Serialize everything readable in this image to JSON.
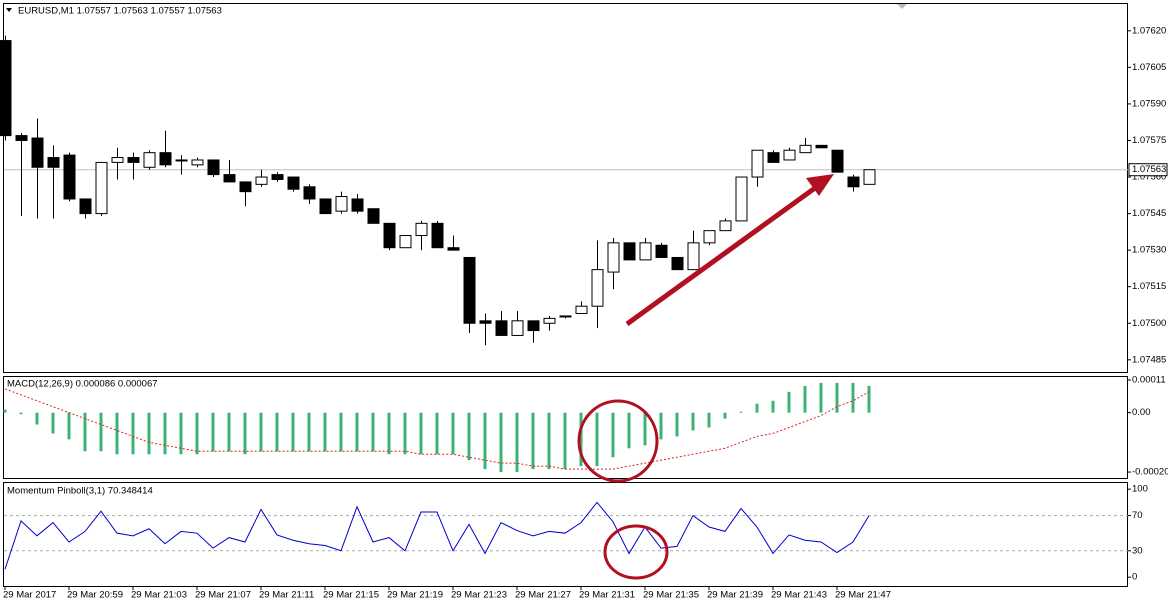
{
  "chart_data": [
    {
      "type": "candlestick",
      "title": "EURUSD,M1 1.07557 1.07563 1.07557 1.07563",
      "categories": [
        "29 Mar 2017",
        null,
        null,
        null,
        "29 Mar 20:59",
        null,
        null,
        null,
        "29 Mar 21:03",
        null,
        null,
        null,
        "29 Mar 21:07",
        null,
        null,
        null,
        "29 Mar 21:11",
        null,
        null,
        null,
        "29 Mar 21:15",
        null,
        null,
        null,
        "29 Mar 21:19",
        null,
        null,
        null,
        "29 Mar 21:23",
        null,
        null,
        null,
        "29 Mar 21:27",
        null,
        null,
        null,
        "29 Mar 21:31",
        null,
        null,
        null,
        "29 Mar 21:35",
        null,
        null,
        null,
        "29 Mar 21:39",
        null,
        null,
        null,
        "29 Mar 21:43",
        null,
        null,
        null,
        "29 Mar 21:47",
        null,
        null
      ],
      "open": [
        1.07616,
        1.07577,
        1.07576,
        1.07568,
        1.07569,
        1.07551,
        1.07545,
        1.07566,
        1.07568,
        1.07564,
        1.0757,
        1.07567,
        1.07565,
        1.07567,
        1.07561,
        1.07558,
        1.07557,
        1.07561,
        1.0756,
        1.07556,
        1.07551,
        1.07546,
        1.07551,
        1.07547,
        1.07541,
        1.07531,
        1.07536,
        1.07541,
        1.07531,
        1.07527,
        1.07501,
        1.07501,
        1.07495,
        1.07501,
        1.075,
        1.07503,
        1.07504,
        1.07507,
        1.07521,
        1.07533,
        1.07526,
        1.07532,
        1.07527,
        1.07522,
        1.07533,
        1.07538,
        1.07542,
        1.0756,
        1.0757,
        1.07567,
        1.0757,
        1.07573,
        1.07571,
        1.0756,
        1.07557
      ],
      "high": [
        1.07618,
        1.07578,
        1.07584,
        1.07573,
        1.0757,
        1.07551,
        1.07566,
        1.07572,
        1.0757,
        1.07571,
        1.07579,
        1.07569,
        1.07568,
        1.07567,
        1.07567,
        1.07558,
        1.07563,
        1.07562,
        1.0756,
        1.07557,
        1.07551,
        1.07554,
        1.07553,
        1.07547,
        1.07541,
        1.07536,
        1.07542,
        1.07542,
        1.07536,
        1.07527,
        1.07504,
        1.07505,
        1.07505,
        1.07501,
        1.07503,
        1.07503,
        1.07509,
        1.07534,
        1.07535,
        1.07533,
        1.07535,
        1.07533,
        1.07527,
        1.07538,
        1.07538,
        1.07543,
        1.0756,
        1.07571,
        1.07571,
        1.07572,
        1.07576,
        1.07573,
        1.07571,
        1.07561,
        1.07563
      ],
      "low": [
        1.07575,
        1.07544,
        1.07543,
        1.07543,
        1.0755,
        1.07543,
        1.07544,
        1.07559,
        1.07559,
        1.07563,
        1.07564,
        1.07561,
        1.07564,
        1.0756,
        1.07558,
        1.07548,
        1.07556,
        1.07558,
        1.07554,
        1.07549,
        1.07545,
        1.07545,
        1.07545,
        1.07541,
        1.0753,
        1.07531,
        1.0753,
        1.07531,
        1.0753,
        1.07496,
        1.07491,
        1.07495,
        1.07495,
        1.07492,
        1.07497,
        1.07502,
        1.07504,
        1.07498,
        1.07514,
        1.07526,
        1.07526,
        1.07527,
        1.07522,
        1.07522,
        1.07532,
        1.07538,
        1.07542,
        1.07556,
        1.07566,
        1.07567,
        1.0757,
        1.07572,
        1.07562,
        1.07554,
        1.07557
      ],
      "close": [
        1.07577,
        1.07575,
        1.07564,
        1.07564,
        1.07551,
        1.07545,
        1.07566,
        1.07568,
        1.07566,
        1.0757,
        1.07565,
        1.07567,
        1.07567,
        1.07561,
        1.07558,
        1.07554,
        1.0756,
        1.07559,
        1.07555,
        1.07551,
        1.07545,
        1.07552,
        1.07546,
        1.07541,
        1.07531,
        1.07536,
        1.07541,
        1.07531,
        1.0753,
        1.075,
        1.075,
        1.07495,
        1.07501,
        1.07497,
        1.07502,
        1.07503,
        1.07507,
        1.07522,
        1.07533,
        1.07526,
        1.07533,
        1.07527,
        1.07522,
        1.07533,
        1.07538,
        1.07542,
        1.0756,
        1.07571,
        1.07566,
        1.07571,
        1.07573,
        1.07572,
        1.07562,
        1.07556,
        1.07563
      ],
      "current_price": {
        "value": 1.07563,
        "label": "1.07563"
      },
      "ylim": [
        1.0748,
        1.07631
      ],
      "yticks": [
        {
          "value": 1.0762,
          "label": "1.07620"
        },
        {
          "value": 1.07605,
          "label": "1.07605"
        },
        {
          "value": 1.0759,
          "label": "1.07590"
        },
        {
          "value": 1.07575,
          "label": "1.07575"
        },
        {
          "value": 1.0756,
          "label": "1.07560"
        },
        {
          "value": 1.07545,
          "label": "1.07545"
        },
        {
          "value": 1.0753,
          "label": "1.07530"
        },
        {
          "value": 1.07515,
          "label": "1.07515"
        },
        {
          "value": 1.075,
          "label": "1.07500"
        },
        {
          "value": 1.07485,
          "label": "1.07485"
        }
      ]
    },
    {
      "type": "bar",
      "title": "MACD(12,26,9) 0.000086 0.000067",
      "color": "#3cb371",
      "signal_color": "#e02020",
      "values": [
        1e-05,
        -5e-06,
        -4e-05,
        -7e-05,
        -9e-05,
        -0.00013,
        -0.00013,
        -0.00014,
        -0.00014,
        -0.00014,
        -0.00014,
        -0.00014,
        -0.00014,
        -0.00013,
        -0.00013,
        -0.00014,
        -0.00013,
        -0.00013,
        -0.00013,
        -0.00013,
        -0.00013,
        -0.00013,
        -0.00013,
        -0.00013,
        -0.00014,
        -0.00014,
        -0.00014,
        -0.00014,
        -0.00014,
        -0.00016,
        -0.00019,
        -0.0002,
        -0.0002,
        -0.00019,
        -0.00019,
        -0.00019,
        -0.00018,
        -0.00018,
        -0.00015,
        -0.00012,
        -0.00011,
        -9e-05,
        -8e-05,
        -6e-05,
        -5e-05,
        -2e-05,
        3e-06,
        3e-05,
        4e-05,
        7e-05,
        9e-05,
        0.0001,
        0.0001,
        0.0001,
        9e-05
      ],
      "signal_values": [
        8e-05,
        6e-05,
        4e-05,
        2e-05,
        0,
        -2e-05,
        -4e-05,
        -6e-05,
        -8e-05,
        -0.0001,
        -0.00011,
        -0.00012,
        -0.00013,
        -0.00013,
        -0.00013,
        -0.00013,
        -0.00013,
        -0.00013,
        -0.00013,
        -0.00013,
        -0.00013,
        -0.00013,
        -0.00013,
        -0.00013,
        -0.00013,
        -0.00013,
        -0.00014,
        -0.00014,
        -0.00014,
        -0.00015,
        -0.00016,
        -0.00017,
        -0.00017,
        -0.00018,
        -0.00018,
        -0.00019,
        -0.00019,
        -0.00019,
        -0.00019,
        -0.00018,
        -0.00017,
        -0.00016,
        -0.00015,
        -0.00014,
        -0.00013,
        -0.00012,
        -0.0001,
        -8e-05,
        -7e-05,
        -5e-05,
        -3e-05,
        -1e-05,
        2e-05,
        4e-05,
        7e-05
      ],
      "ylim": [
        -0.00022,
        0.00012
      ],
      "yticks": [
        0.00011,
        {
          "value": 0,
          "label": "0.00"
        },
        {
          "value": -0.0002,
          "label": "-0.00020"
        }
      ]
    },
    {
      "type": "line",
      "title": "Momentum Pinboll(3,1) 70.348414",
      "color": "#0000cd",
      "values": [
        9,
        64,
        47,
        62,
        40,
        52,
        75,
        50,
        47,
        55,
        38,
        52,
        50,
        33,
        45,
        40,
        77,
        48,
        42,
        38,
        36,
        30,
        80,
        40,
        45,
        30,
        74,
        74,
        30,
        60,
        27,
        62,
        53,
        47,
        52,
        50,
        62,
        85,
        63,
        27,
        57,
        33,
        35,
        70,
        57,
        52,
        78,
        57,
        27,
        48,
        42,
        40,
        28,
        40,
        70
      ],
      "levels": [
        70,
        30
      ],
      "ylim": [
        -10,
        107
      ],
      "yticks": [
        100,
        70,
        30,
        0
      ]
    }
  ]
}
